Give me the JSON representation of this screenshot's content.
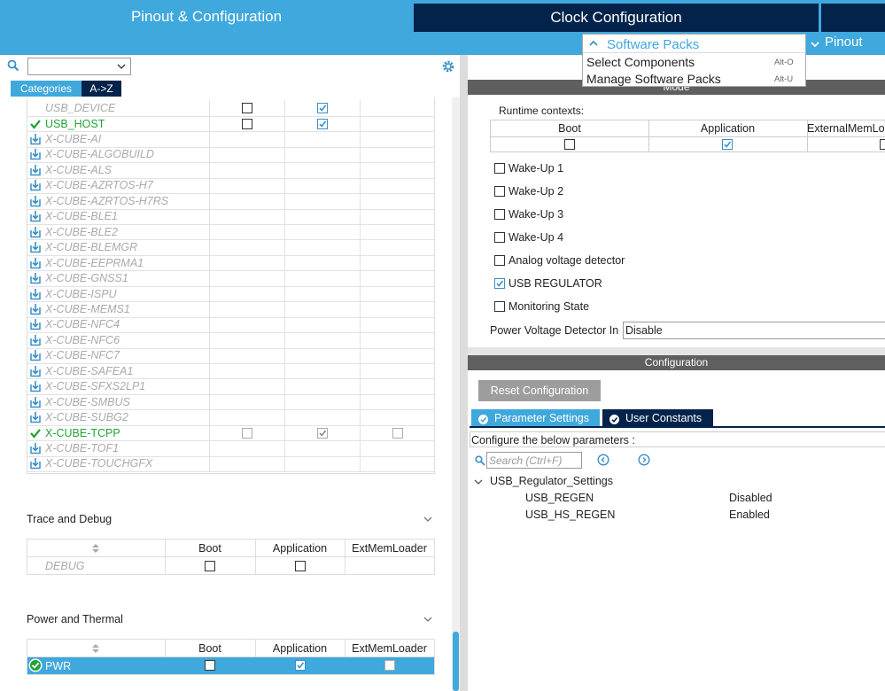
{
  "tabs": {
    "pinout": "Pinout & Configuration",
    "clock": "Clock Configuration"
  },
  "toolbar": {
    "software_packs": "Software Packs",
    "pinout_menu": "Pinout"
  },
  "software_packs_menu": [
    {
      "label": "Select Components",
      "shortcut": "Alt-O"
    },
    {
      "label": "Manage Software Packs",
      "shortcut": "Alt-U"
    }
  ],
  "sidebar": {
    "view_tabs": [
      "Categories",
      "A->Z"
    ],
    "middleware": [
      {
        "name": "USB_DEVICE",
        "status": "none",
        "boxes": [
          false,
          true,
          null
        ]
      },
      {
        "name": "USB_HOST",
        "status": "enabled",
        "boxes": [
          false,
          true,
          null
        ]
      },
      {
        "name": "X-CUBE-AI",
        "status": "pack"
      },
      {
        "name": "X-CUBE-ALGOBUILD",
        "status": "pack"
      },
      {
        "name": "X-CUBE-ALS",
        "status": "pack"
      },
      {
        "name": "X-CUBE-AZRTOS-H7",
        "status": "pack"
      },
      {
        "name": "X-CUBE-AZRTOS-H7RS",
        "status": "pack"
      },
      {
        "name": "X-CUBE-BLE1",
        "status": "pack"
      },
      {
        "name": "X-CUBE-BLE2",
        "status": "pack"
      },
      {
        "name": "X-CUBE-BLEMGR",
        "status": "pack"
      },
      {
        "name": "X-CUBE-EEPRMA1",
        "status": "pack"
      },
      {
        "name": "X-CUBE-GNSS1",
        "status": "pack"
      },
      {
        "name": "X-CUBE-ISPU",
        "status": "pack"
      },
      {
        "name": "X-CUBE-MEMS1",
        "status": "pack"
      },
      {
        "name": "X-CUBE-NFC4",
        "status": "pack"
      },
      {
        "name": "X-CUBE-NFC6",
        "status": "pack"
      },
      {
        "name": "X-CUBE-NFC7",
        "status": "pack"
      },
      {
        "name": "X-CUBE-SAFEA1",
        "status": "pack"
      },
      {
        "name": "X-CUBE-SFXS2LP1",
        "status": "pack"
      },
      {
        "name": "X-CUBE-SMBUS",
        "status": "pack"
      },
      {
        "name": "X-CUBE-SUBG2",
        "status": "pack"
      },
      {
        "name": "X-CUBE-TCPP",
        "status": "enabled",
        "disabled": true,
        "boxes": [
          false,
          true,
          false
        ]
      },
      {
        "name": "X-CUBE-TOF1",
        "status": "pack"
      },
      {
        "name": "X-CUBE-TOUCHGFX",
        "status": "pack"
      }
    ],
    "sections": [
      {
        "title": "Trace and Debug",
        "columns": [
          "Boot",
          "Application",
          "ExtMemLoader"
        ],
        "rows": [
          {
            "name": "DEBUG",
            "status": "none",
            "boxes": [
              false,
              false,
              null
            ],
            "selected": false
          }
        ]
      },
      {
        "title": "Power and Thermal",
        "columns": [
          "Boot",
          "Application",
          "ExtMemLoader"
        ],
        "rows": [
          {
            "name": "PWR",
            "status": "ok",
            "boxes": [
              false,
              true,
              false
            ],
            "selected": true
          }
        ]
      }
    ]
  },
  "mode": {
    "title": "Mode",
    "runtime_label": "Runtime contexts:",
    "columns": [
      "Boot",
      "Application",
      "ExternalMemLoader"
    ],
    "boxes": [
      false,
      true,
      false
    ],
    "options": [
      {
        "label": "Wake-Up 1",
        "checked": false
      },
      {
        "label": "Wake-Up 2",
        "checked": false
      },
      {
        "label": "Wake-Up 3",
        "checked": false
      },
      {
        "label": "Wake-Up 4",
        "checked": false
      },
      {
        "label": "Analog voltage detector",
        "checked": false
      },
      {
        "label": "USB REGULATOR",
        "checked": true
      },
      {
        "label": "Monitoring State",
        "checked": false
      }
    ],
    "pvd": {
      "label": "Power Voltage Detector In",
      "value": "Disable"
    }
  },
  "configuration": {
    "title": "Configuration",
    "reset": "Reset Configuration",
    "tabs": [
      "Parameter Settings",
      "User Constants"
    ],
    "hint": "Configure the below parameters :",
    "search_placeholder": "Search (Ctrl+F)",
    "group": "USB_Regulator_Settings",
    "params": [
      {
        "name": "USB_REGEN",
        "value": "Disabled"
      },
      {
        "name": "USB_HS_REGEN",
        "value": "Enabled"
      }
    ]
  }
}
